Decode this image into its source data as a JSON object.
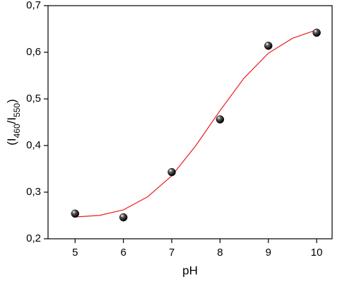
{
  "chart_data": {
    "type": "scatter",
    "x_label": "pH",
    "y_label": [
      "(I",
      "460",
      "/I",
      "550",
      ")"
    ],
    "xlim": [
      4.44,
      10.32
    ],
    "ylim": [
      0.2,
      0.7
    ],
    "xticks": [
      5,
      6,
      7,
      8,
      9,
      10
    ],
    "yticks": [
      {
        "value": 0.2,
        "label": "0,2"
      },
      {
        "value": 0.3,
        "label": "0,3"
      },
      {
        "value": 0.4,
        "label": "0,4"
      },
      {
        "value": 0.5,
        "label": "0,5"
      },
      {
        "value": 0.6,
        "label": "0,6"
      },
      {
        "value": 0.7,
        "label": "0,7"
      }
    ],
    "series": [
      {
        "type": "scatter",
        "color": "#000000",
        "x": [
          5,
          6,
          7,
          8,
          9,
          10
        ],
        "values": [
          0.254,
          0.246,
          0.343,
          0.456,
          0.614,
          0.642
        ]
      },
      {
        "type": "line",
        "color": "#e82020",
        "x": [
          5,
          5.5,
          6,
          6.5,
          7,
          7.5,
          8,
          8.5,
          9,
          9.5,
          10
        ],
        "values": [
          0.247,
          0.25,
          0.262,
          0.29,
          0.335,
          0.4,
          0.475,
          0.545,
          0.598,
          0.63,
          0.648
        ]
      }
    ]
  }
}
